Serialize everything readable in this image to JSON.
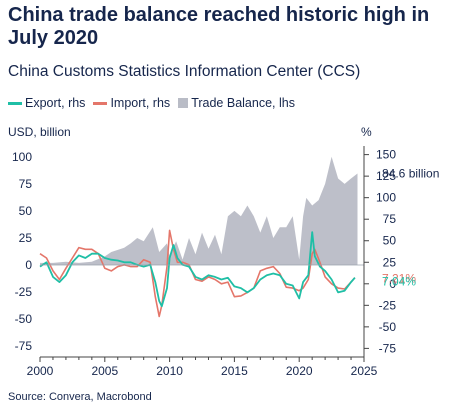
{
  "title": "China trade balance reached historic high in July 2020",
  "subtitle": "China Customs Statistics Information Center (CCS)",
  "source": "Source: Convera, Macrobond",
  "colors": {
    "export": "#1fbfa6",
    "import": "#e4766a",
    "balance": "#b9bcc6",
    "text": "#16264c",
    "axis": "#444444"
  },
  "chart_data": {
    "type": "line",
    "legend": [
      {
        "key": "export",
        "label": "Export, rhs",
        "shape": "line"
      },
      {
        "key": "import",
        "label": "Import, rhs",
        "shape": "line"
      },
      {
        "key": "balance",
        "label": "Trade Balance, lhs",
        "shape": "box"
      }
    ],
    "left_axis": {
      "label": "USD, billion",
      "range": [
        -85,
        110
      ],
      "ticks": [
        100,
        75,
        50,
        25,
        0,
        -25,
        -50,
        -75
      ]
    },
    "right_axis": {
      "label": "%",
      "range": [
        -85,
        160
      ],
      "ticks": [
        150,
        125,
        100,
        75,
        50,
        25,
        0,
        -25,
        -50,
        -75
      ]
    },
    "x_axis": {
      "range": [
        2000,
        2025
      ],
      "ticks": [
        2000,
        2005,
        2010,
        2015,
        2020,
        2025
      ]
    },
    "annotations": [
      {
        "text": "84.6 billion",
        "series": "balance",
        "axis": "left",
        "value": 84.6
      },
      {
        "text": "7.21%",
        "series": "import",
        "axis": "right",
        "value": 7.21
      },
      {
        "text": "7.04%",
        "series": "export",
        "axis": "right",
        "value": 7.04
      }
    ],
    "series": [
      {
        "name": "Trade Balance, lhs",
        "key": "balance",
        "axis": "left",
        "points": [
          [
            2000.0,
            2
          ],
          [
            2001.0,
            2
          ],
          [
            2002.0,
            3
          ],
          [
            2003.0,
            2
          ],
          [
            2004.0,
            3
          ],
          [
            2005.0,
            8
          ],
          [
            2005.5,
            12
          ],
          [
            2006.0,
            14
          ],
          [
            2006.5,
            16
          ],
          [
            2007.0,
            20
          ],
          [
            2007.5,
            25
          ],
          [
            2008.0,
            22
          ],
          [
            2008.7,
            35
          ],
          [
            2009.2,
            12
          ],
          [
            2009.8,
            20
          ],
          [
            2010.0,
            8
          ],
          [
            2010.5,
            22
          ],
          [
            2011.0,
            5
          ],
          [
            2011.5,
            25
          ],
          [
            2012.0,
            10
          ],
          [
            2012.5,
            30
          ],
          [
            2013.0,
            15
          ],
          [
            2013.5,
            28
          ],
          [
            2014.0,
            10
          ],
          [
            2014.5,
            45
          ],
          [
            2015.0,
            50
          ],
          [
            2015.5,
            45
          ],
          [
            2016.0,
            55
          ],
          [
            2016.5,
            45
          ],
          [
            2017.0,
            30
          ],
          [
            2017.5,
            45
          ],
          [
            2018.0,
            25
          ],
          [
            2018.5,
            35
          ],
          [
            2019.0,
            35
          ],
          [
            2019.5,
            45
          ],
          [
            2020.0,
            5
          ],
          [
            2020.3,
            45
          ],
          [
            2020.55,
            62
          ],
          [
            2021.0,
            55
          ],
          [
            2021.5,
            60
          ],
          [
            2022.0,
            75
          ],
          [
            2022.5,
            100
          ],
          [
            2023.0,
            80
          ],
          [
            2023.5,
            75
          ],
          [
            2024.0,
            80
          ],
          [
            2024.5,
            84.6
          ]
        ]
      },
      {
        "name": "Export, rhs",
        "key": "export",
        "axis": "right",
        "points": [
          [
            2000.0,
            20
          ],
          [
            2000.5,
            25
          ],
          [
            2001.0,
            8
          ],
          [
            2001.5,
            2
          ],
          [
            2002.0,
            10
          ],
          [
            2002.5,
            25
          ],
          [
            2003.0,
            33
          ],
          [
            2003.5,
            30
          ],
          [
            2004.0,
            35
          ],
          [
            2004.5,
            35
          ],
          [
            2005.0,
            30
          ],
          [
            2005.5,
            28
          ],
          [
            2006.0,
            27
          ],
          [
            2006.5,
            25
          ],
          [
            2007.0,
            25
          ],
          [
            2007.5,
            22
          ],
          [
            2008.0,
            20
          ],
          [
            2008.5,
            22
          ],
          [
            2008.9,
            2
          ],
          [
            2009.2,
            -20
          ],
          [
            2009.4,
            -26
          ],
          [
            2009.8,
            -5
          ],
          [
            2010.0,
            30
          ],
          [
            2010.3,
            45
          ],
          [
            2010.6,
            30
          ],
          [
            2011.0,
            22
          ],
          [
            2011.5,
            20
          ],
          [
            2012.0,
            8
          ],
          [
            2012.5,
            5
          ],
          [
            2013.0,
            10
          ],
          [
            2013.5,
            8
          ],
          [
            2014.0,
            5
          ],
          [
            2014.5,
            7
          ],
          [
            2015.0,
            -3
          ],
          [
            2015.5,
            -5
          ],
          [
            2016.0,
            -10
          ],
          [
            2016.5,
            -5
          ],
          [
            2017.0,
            5
          ],
          [
            2017.5,
            10
          ],
          [
            2018.0,
            12
          ],
          [
            2018.5,
            10
          ],
          [
            2019.0,
            0
          ],
          [
            2019.5,
            -2
          ],
          [
            2020.0,
            -17
          ],
          [
            2020.3,
            2
          ],
          [
            2020.7,
            10
          ],
          [
            2021.0,
            60
          ],
          [
            2021.2,
            32
          ],
          [
            2021.6,
            20
          ],
          [
            2022.0,
            15
          ],
          [
            2022.5,
            5
          ],
          [
            2023.0,
            -10
          ],
          [
            2023.5,
            -8
          ],
          [
            2024.0,
            2
          ],
          [
            2024.3,
            7.04
          ]
        ]
      },
      {
        "name": "Import, rhs",
        "key": "import",
        "axis": "right",
        "points": [
          [
            2000.0,
            35
          ],
          [
            2000.5,
            30
          ],
          [
            2001.0,
            15
          ],
          [
            2001.5,
            5
          ],
          [
            2002.0,
            18
          ],
          [
            2002.5,
            30
          ],
          [
            2003.0,
            42
          ],
          [
            2003.5,
            40
          ],
          [
            2004.0,
            40
          ],
          [
            2004.5,
            35
          ],
          [
            2005.0,
            18
          ],
          [
            2005.5,
            15
          ],
          [
            2006.0,
            20
          ],
          [
            2006.5,
            22
          ],
          [
            2007.0,
            20
          ],
          [
            2007.5,
            20
          ],
          [
            2008.0,
            28
          ],
          [
            2008.5,
            25
          ],
          [
            2008.9,
            -15
          ],
          [
            2009.2,
            -38
          ],
          [
            2009.4,
            -25
          ],
          [
            2009.8,
            20
          ],
          [
            2010.0,
            62
          ],
          [
            2010.3,
            40
          ],
          [
            2010.6,
            25
          ],
          [
            2011.0,
            25
          ],
          [
            2011.5,
            22
          ],
          [
            2012.0,
            5
          ],
          [
            2012.5,
            3
          ],
          [
            2013.0,
            8
          ],
          [
            2013.5,
            5
          ],
          [
            2014.0,
            0
          ],
          [
            2014.5,
            2
          ],
          [
            2015.0,
            -15
          ],
          [
            2015.5,
            -14
          ],
          [
            2016.0,
            -10
          ],
          [
            2016.5,
            -5
          ],
          [
            2017.0,
            15
          ],
          [
            2017.5,
            18
          ],
          [
            2018.0,
            20
          ],
          [
            2018.5,
            12
          ],
          [
            2019.0,
            -4
          ],
          [
            2019.5,
            -5
          ],
          [
            2020.0,
            -8
          ],
          [
            2020.3,
            -5
          ],
          [
            2020.7,
            5
          ],
          [
            2021.0,
            35
          ],
          [
            2021.2,
            40
          ],
          [
            2021.6,
            25
          ],
          [
            2022.0,
            8
          ],
          [
            2022.5,
            0
          ],
          [
            2023.0,
            -5
          ],
          [
            2023.5,
            -6
          ],
          [
            2024.0,
            2
          ],
          [
            2024.3,
            7.21
          ]
        ]
      }
    ]
  }
}
